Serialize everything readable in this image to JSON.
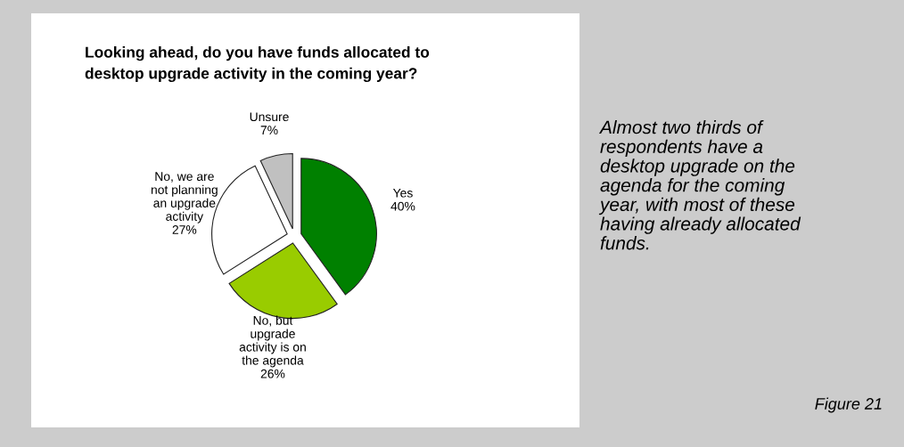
{
  "chart_data": {
    "type": "pie",
    "title": "Looking ahead, do you have funds allocated to\ndesktop upgrade activity in the coming year?",
    "categories": [
      "Yes",
      "No, but\nupgrade\nactivity is on\nthe agenda",
      "No, we are\nnot planning\nan upgrade\nactivity",
      "Unsure"
    ],
    "values": [
      40,
      26,
      27,
      7
    ],
    "value_labels": [
      "40%",
      "26%",
      "27%",
      "7%"
    ],
    "colors": [
      "#008000",
      "#99cc00",
      "#ffffff",
      "#c0c0c0"
    ],
    "annotations": [
      "Almost two thirds of\nrespondents have a\ndesktop upgrade on the\nagenda for the coming\nyear, with most of these\nhaving already allocated\nfunds.",
      "Figure 21"
    ]
  }
}
